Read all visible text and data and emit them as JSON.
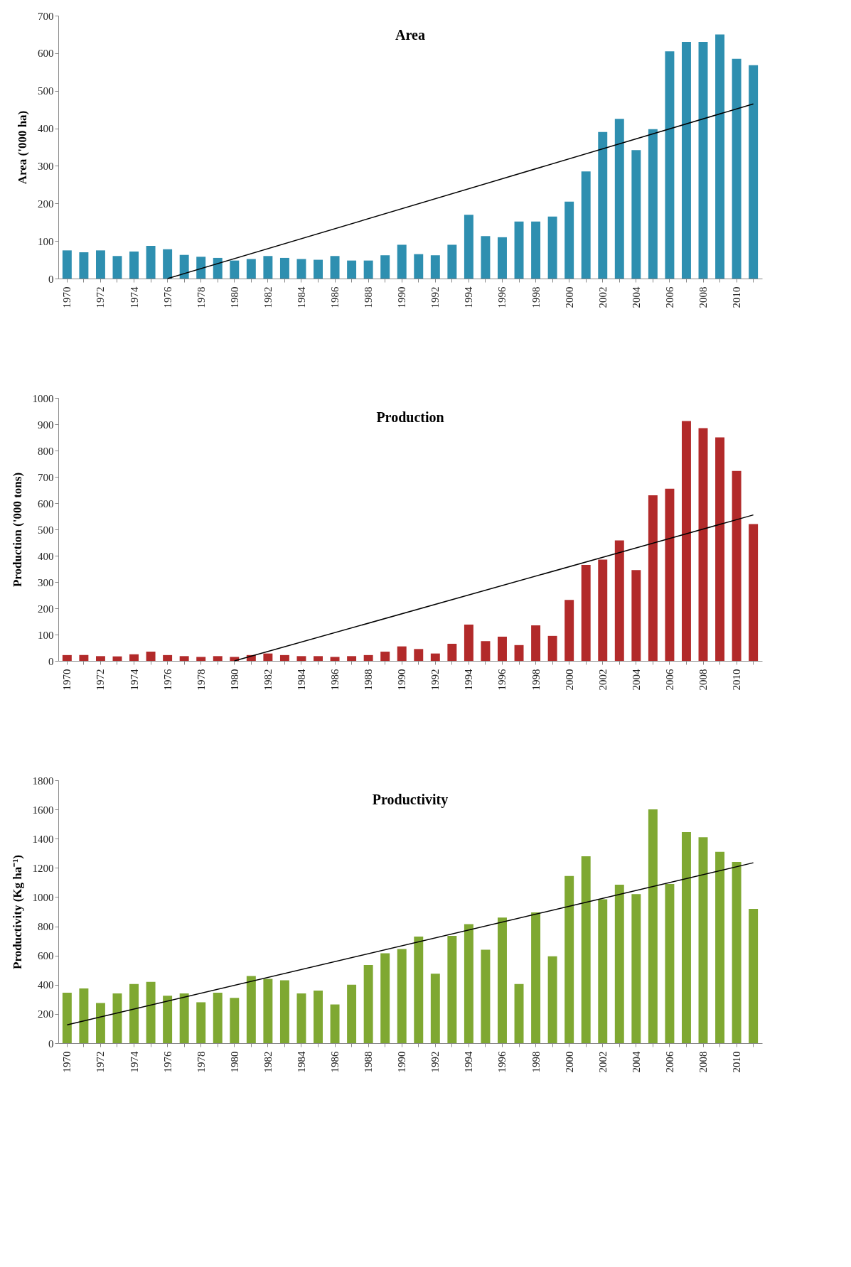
{
  "chart_data": [
    {
      "type": "bar",
      "title": "Area",
      "ylabel": "Area ('000 ha)",
      "categories": [
        "1970",
        null,
        "1972",
        null,
        "1974",
        null,
        "1976",
        null,
        "1978",
        null,
        "1980",
        null,
        "1982",
        null,
        "1984",
        null,
        "1986",
        null,
        "1988",
        null,
        "1990",
        null,
        "1992",
        null,
        "1994",
        null,
        "1996",
        null,
        "1998",
        null,
        "2000",
        null,
        "2002",
        null,
        "2004",
        null,
        "2006",
        null,
        "2008",
        null,
        "2010",
        null
      ],
      "series": [
        {
          "color": "#2e8fb0",
          "values": [
            75,
            70,
            75,
            60,
            72,
            87,
            78,
            63,
            58,
            55,
            48,
            52,
            60,
            55,
            52,
            50,
            60,
            48,
            48,
            62,
            90,
            65,
            62,
            90,
            170,
            113,
            110,
            152,
            152,
            165,
            205,
            285,
            390,
            425,
            342,
            398,
            605,
            630,
            630,
            650,
            585,
            568
          ]
        },
        {
          "type": "line",
          "color": "#000000",
          "values": [
            null,
            null,
            null,
            null,
            null,
            null,
            0,
            null,
            null,
            null,
            null,
            null,
            null,
            null,
            null,
            null,
            null,
            null,
            null,
            null,
            null,
            null,
            null,
            null,
            null,
            null,
            null,
            null,
            null,
            null,
            null,
            null,
            null,
            null,
            null,
            null,
            null,
            null,
            null,
            null,
            null,
            465
          ]
        }
      ],
      "ylim": [
        0,
        700
      ],
      "yticks": [
        0,
        100,
        200,
        300,
        400,
        500,
        600,
        700
      ],
      "grid": false
    },
    {
      "type": "bar",
      "title": "Production",
      "ylabel": "Production ('000 tons)",
      "categories": [
        "1970",
        null,
        "1972",
        null,
        "1974",
        null,
        "1976",
        null,
        "1978",
        null,
        "1980",
        null,
        "1982",
        null,
        "1984",
        null,
        "1986",
        null,
        "1988",
        null,
        "1990",
        null,
        "1992",
        null,
        "1994",
        null,
        "1996",
        null,
        "1998",
        null,
        "2000",
        null,
        "2002",
        null,
        "2004",
        null,
        "2006",
        null,
        "2008",
        null,
        "2010",
        null
      ],
      "series": [
        {
          "color": "#b22a2a",
          "values": [
            22,
            22,
            18,
            17,
            25,
            35,
            22,
            18,
            15,
            18,
            15,
            22,
            28,
            22,
            18,
            18,
            15,
            18,
            22,
            35,
            55,
            45,
            28,
            65,
            138,
            75,
            92,
            60,
            135,
            95,
            232,
            365,
            385,
            458,
            345,
            630,
            655,
            912,
            885,
            850,
            722,
            520
          ]
        },
        {
          "type": "line",
          "color": "#000000",
          "values": [
            null,
            null,
            null,
            null,
            null,
            null,
            null,
            null,
            null,
            null,
            0,
            null,
            null,
            null,
            null,
            null,
            null,
            null,
            null,
            null,
            null,
            null,
            null,
            null,
            null,
            null,
            null,
            null,
            null,
            null,
            null,
            null,
            null,
            null,
            null,
            null,
            null,
            null,
            null,
            null,
            null,
            555
          ]
        }
      ],
      "ylim": [
        0,
        1000
      ],
      "yticks": [
        0,
        100,
        200,
        300,
        400,
        500,
        600,
        700,
        800,
        900,
        1000
      ],
      "grid": false
    },
    {
      "type": "bar",
      "title": "Productivity",
      "ylabel": "Productivity (Kg ha⁻¹)",
      "categories": [
        "1970",
        null,
        "1972",
        null,
        "1974",
        null,
        "1976",
        null,
        "1978",
        null,
        "1980",
        null,
        "1982",
        null,
        "1984",
        null,
        "1986",
        null,
        "1988",
        null,
        "1990",
        null,
        "1992",
        null,
        "1994",
        null,
        "1996",
        null,
        "1998",
        null,
        "2000",
        null,
        "2002",
        null,
        "2004",
        null,
        "2006",
        null,
        "2008",
        null,
        "2010",
        null
      ],
      "series": [
        {
          "color": "#7fa832",
          "values": [
            345,
            375,
            275,
            340,
            405,
            420,
            325,
            340,
            280,
            345,
            310,
            460,
            440,
            430,
            340,
            360,
            265,
            400,
            535,
            615,
            645,
            730,
            475,
            735,
            815,
            640,
            860,
            405,
            895,
            595,
            1145,
            1280,
            985,
            1085,
            1020,
            1600,
            1090,
            1445,
            1410,
            1310,
            1240,
            920
          ]
        },
        {
          "type": "line",
          "color": "#000000",
          "values": [
            125,
            null,
            null,
            null,
            null,
            null,
            null,
            null,
            null,
            null,
            null,
            null,
            null,
            null,
            null,
            null,
            null,
            null,
            null,
            null,
            null,
            null,
            null,
            null,
            null,
            null,
            null,
            null,
            null,
            null,
            null,
            null,
            null,
            null,
            null,
            null,
            null,
            null,
            null,
            null,
            null,
            1235
          ]
        }
      ],
      "ylim": [
        0,
        1800
      ],
      "yticks": [
        0,
        200,
        400,
        600,
        800,
        1000,
        1200,
        1400,
        1600,
        1800
      ],
      "grid": false
    }
  ]
}
